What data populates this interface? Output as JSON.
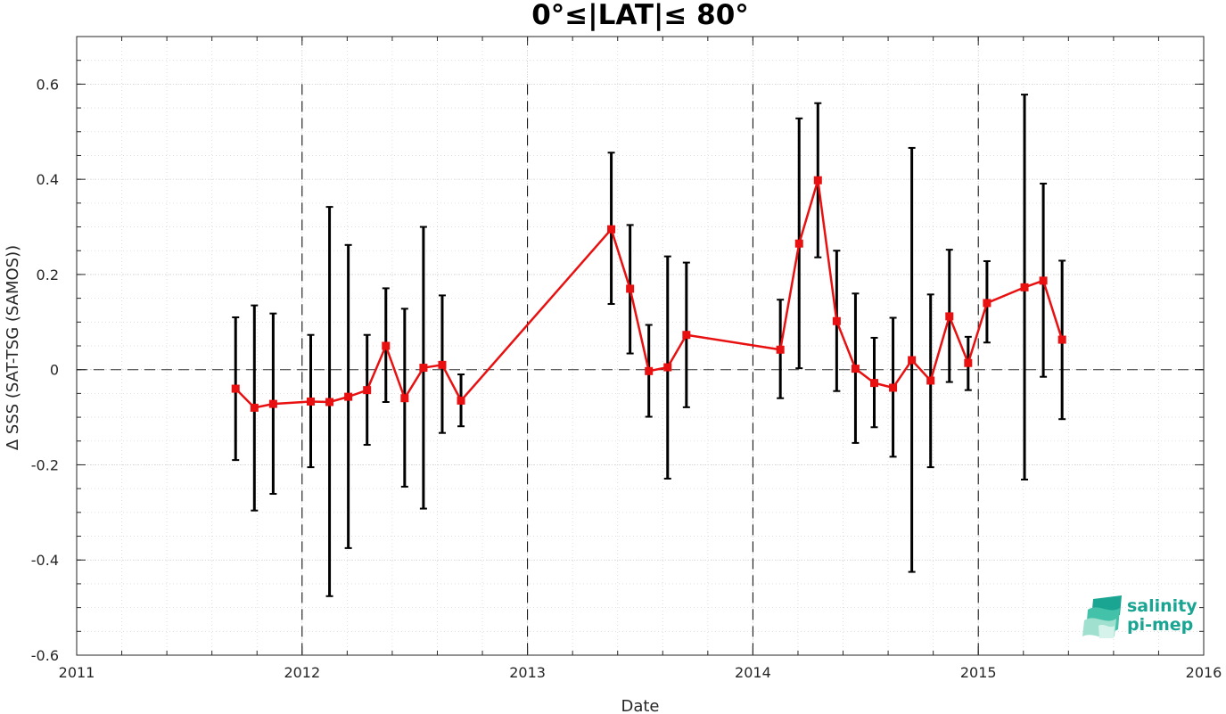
{
  "chart_data": {
    "type": "line",
    "title": "0°≤|LAT|≤ 80°",
    "xlabel": "Date",
    "ylabel": "Δ SSS (SAT-TSG (SAMOS))",
    "xlim": [
      "2011-01-01",
      "2016-01-01"
    ],
    "ylim": [
      -0.6,
      0.7
    ],
    "x_ticks": [
      "2011",
      "2012",
      "2013",
      "2014",
      "2015",
      "2016"
    ],
    "y_ticks": [
      "-0.6",
      "-0.4",
      "-0.2",
      "0",
      "0.2",
      "0.4",
      "0.6"
    ],
    "grid": true,
    "minor_grid": true,
    "zero_line": "dashed",
    "year_boundaries": [
      "2012",
      "2013",
      "2014",
      "2015"
    ],
    "colors": {
      "line": "#e81010",
      "marker": "#e81010",
      "errorbar": "#000000"
    },
    "series": [
      {
        "x": [
          "2011-09-15",
          "2011-10-15",
          "2011-11-15",
          "2012-01-15",
          "2012-02-15",
          "2012-03-15",
          "2012-04-15",
          "2012-05-15",
          "2012-06-15",
          "2012-07-15",
          "2012-08-15",
          "2012-09-15",
          "2013-05-15",
          "2013-06-15",
          "2013-07-15",
          "2013-08-15",
          "2013-09-15",
          "2014-02-15",
          "2014-03-15",
          "2014-04-15",
          "2014-05-15",
          "2014-06-15",
          "2014-07-15",
          "2014-08-15",
          "2014-09-15",
          "2014-10-15",
          "2014-11-15",
          "2014-12-15",
          "2015-01-15",
          "2015-03-15",
          "2015-04-15",
          "2015-05-15"
        ],
        "y": [
          -0.04,
          -0.08,
          -0.072,
          -0.067,
          -0.068,
          -0.057,
          -0.043,
          0.05,
          -0.06,
          0.004,
          0.01,
          -0.065,
          0.295,
          0.17,
          -0.003,
          0.005,
          0.073,
          0.042,
          0.265,
          0.398,
          0.102,
          0.002,
          -0.028,
          -0.038,
          0.02,
          -0.023,
          0.112,
          0.014,
          0.14,
          0.173,
          0.187,
          0.063
        ],
        "err_lower": [
          -0.19,
          -0.296,
          -0.261,
          -0.205,
          -0.476,
          -0.375,
          -0.158,
          -0.068,
          -0.246,
          -0.292,
          -0.133,
          -0.119,
          0.138,
          0.034,
          -0.099,
          -0.229,
          -0.079,
          -0.06,
          0.003,
          0.236,
          -0.045,
          -0.154,
          -0.121,
          -0.183,
          -0.425,
          -0.205,
          -0.026,
          -0.043,
          0.057,
          -0.231,
          -0.015,
          -0.104
        ],
        "err_upper": [
          0.11,
          0.135,
          0.118,
          0.073,
          0.342,
          0.262,
          0.073,
          0.171,
          0.128,
          0.3,
          0.156,
          -0.01,
          0.456,
          0.304,
          0.094,
          0.238,
          0.225,
          0.147,
          0.528,
          0.56,
          0.25,
          0.16,
          0.067,
          0.109,
          0.466,
          0.158,
          0.252,
          0.069,
          0.228,
          0.578,
          0.391,
          0.229
        ]
      }
    ]
  },
  "logo": {
    "line1": "salinity",
    "line2": "pi-mep"
  }
}
